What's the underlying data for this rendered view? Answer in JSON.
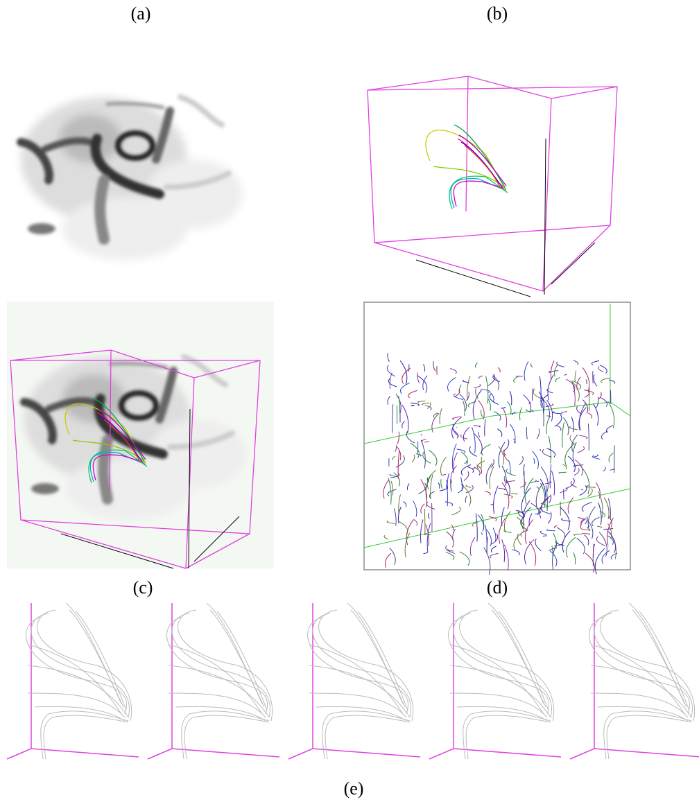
{
  "panels": [
    "(a)",
    "(b)",
    "(c)",
    "(d)",
    "(e)"
  ]
}
